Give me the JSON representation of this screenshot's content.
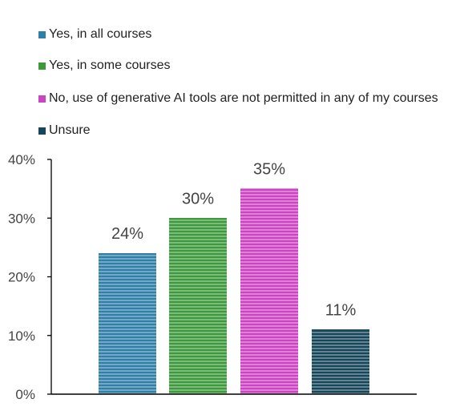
{
  "chart_data": {
    "type": "bar",
    "categories": [
      "Yes, in all courses",
      "Yes, in some courses",
      "No, use of generative AI tools are not permitted in any of my courses",
      "Unsure"
    ],
    "values": [
      24,
      30,
      35,
      11
    ],
    "data_labels": [
      "24%",
      "30%",
      "35%",
      "11%"
    ],
    "colors": [
      "#2f7fa8",
      "#3c9a3a",
      "#cc44c4",
      "#16465a"
    ],
    "ylim": [
      0,
      40
    ],
    "yticks": [
      "0%",
      "10%",
      "20%",
      "30%",
      "40%"
    ],
    "ytick_values": [
      0,
      10,
      20,
      30,
      40
    ],
    "grid": false,
    "legend_position": "top-left",
    "title": "",
    "xlabel": "",
    "ylabel": ""
  }
}
